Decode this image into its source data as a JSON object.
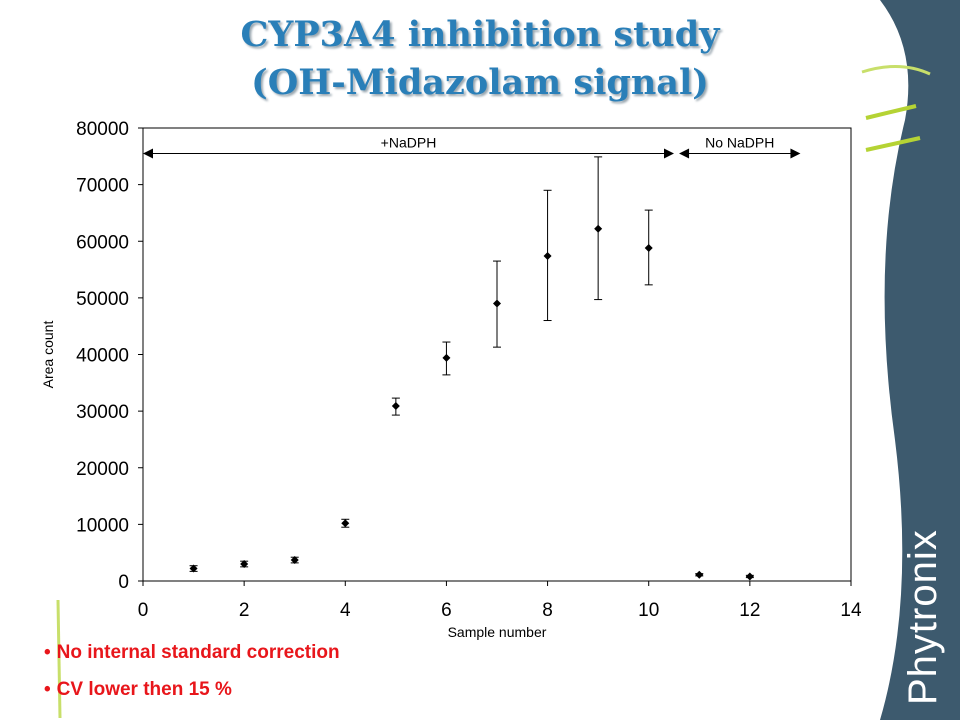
{
  "slide": {
    "title_line1": "CYP3A4 inhibition study",
    "title_line2": "(OH-Midazolam signal)",
    "bullets": [
      "No internal standard correction",
      "CV lower then 15 %"
    ],
    "logo_text": "Phytronix",
    "colors": {
      "title": "#2a7fb8",
      "bullet": "#e8161b",
      "side_panel": "#3d5a6e",
      "accent_lines": "#b5d334"
    }
  },
  "chart_data": {
    "type": "scatter",
    "xlabel": "Sample number",
    "ylabel": "Area count",
    "xlim": [
      0,
      14
    ],
    "ylim": [
      0,
      80000
    ],
    "xticks": [
      0,
      2,
      4,
      6,
      8,
      10,
      12,
      14
    ],
    "yticks": [
      0,
      10000,
      20000,
      30000,
      40000,
      50000,
      60000,
      70000,
      80000
    ],
    "grid": false,
    "points": [
      {
        "x": 1,
        "y": 2200,
        "err_low": 1700,
        "err_high": 2700
      },
      {
        "x": 2,
        "y": 3000,
        "err_low": 2500,
        "err_high": 3500
      },
      {
        "x": 3,
        "y": 3700,
        "err_low": 3200,
        "err_high": 4200
      },
      {
        "x": 4,
        "y": 10200,
        "err_low": 9500,
        "err_high": 10900
      },
      {
        "x": 5,
        "y": 30900,
        "err_low": 29300,
        "err_high": 32300
      },
      {
        "x": 6,
        "y": 39400,
        "err_low": 36400,
        "err_high": 42200
      },
      {
        "x": 7,
        "y": 49000,
        "err_low": 41300,
        "err_high": 56500
      },
      {
        "x": 8,
        "y": 57400,
        "err_low": 46000,
        "err_high": 69000
      },
      {
        "x": 9,
        "y": 62200,
        "err_low": 49700,
        "err_high": 74900
      },
      {
        "x": 10,
        "y": 58800,
        "err_low": 52300,
        "err_high": 65500
      },
      {
        "x": 11,
        "y": 1100,
        "err_low": 900,
        "err_high": 1300
      },
      {
        "x": 12,
        "y": 800,
        "err_low": 600,
        "err_high": 1000
      }
    ],
    "annotations": [
      {
        "label": "+NaDPH",
        "x_start": 0,
        "x_end": 10.5,
        "y": 75500
      },
      {
        "label": "No NaDPH",
        "x_start": 10.6,
        "x_end": 13,
        "y": 75500
      }
    ]
  }
}
